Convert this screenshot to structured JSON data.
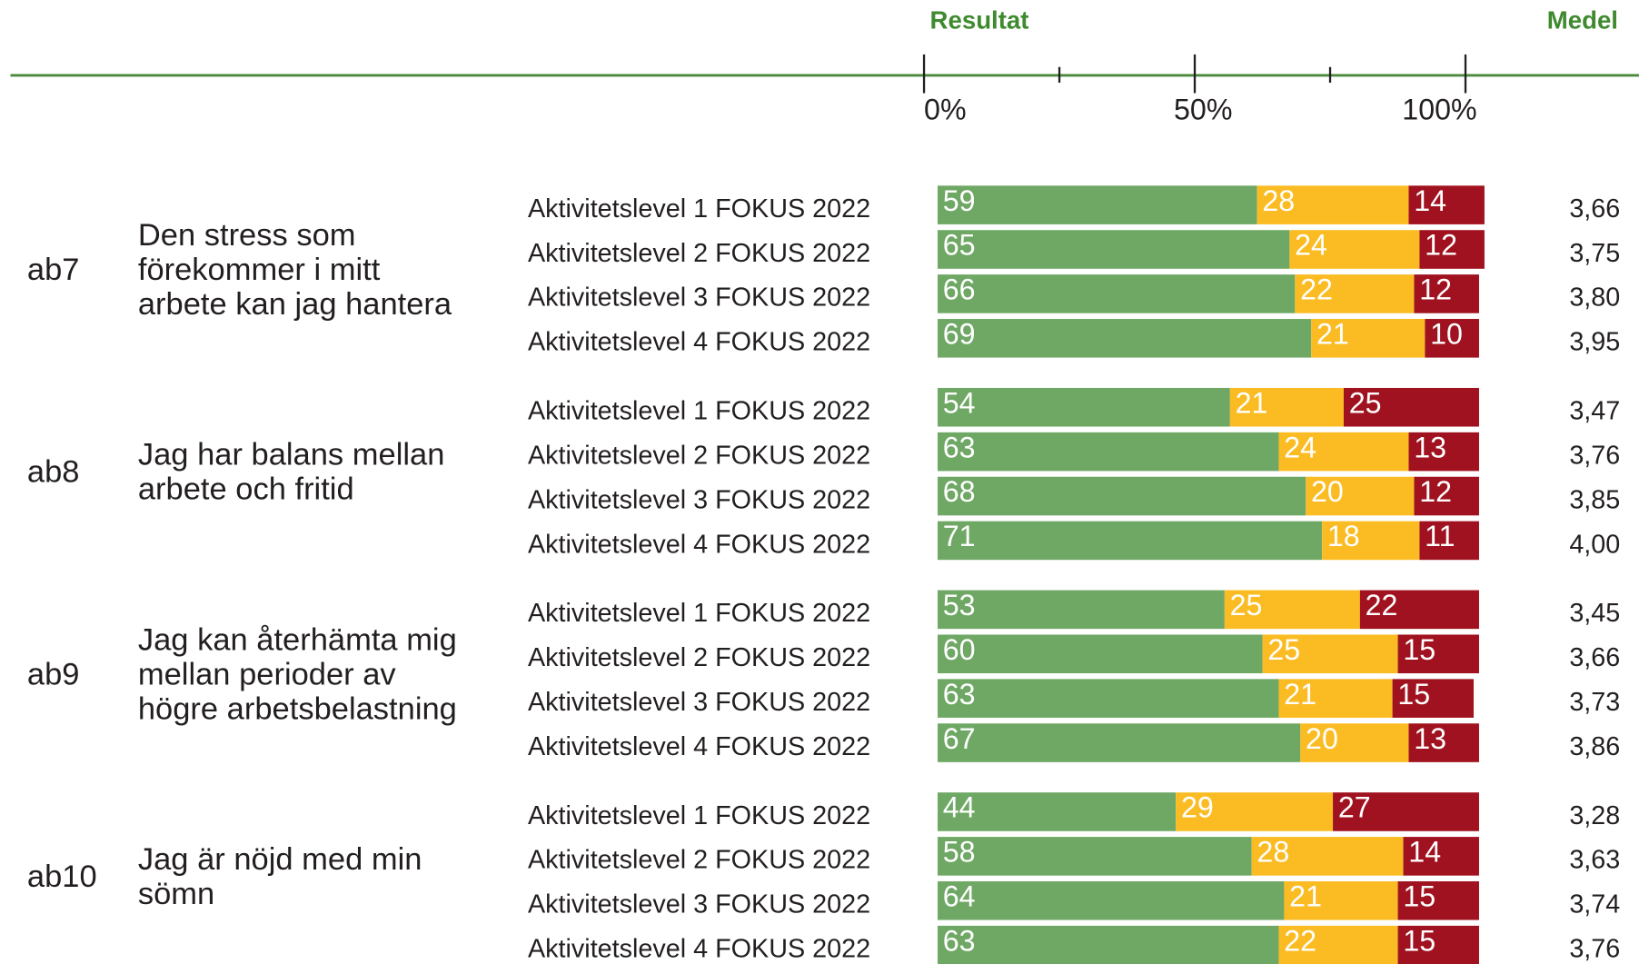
{
  "chart_data": {
    "type": "bar",
    "orientation": "horizontal",
    "stacked": true,
    "headers": [
      "Resultat",
      "Medel"
    ],
    "xlim": [
      0,
      100
    ],
    "xticks": [
      {
        "value": 0,
        "label": "0%"
      },
      {
        "value": 50,
        "label": "50%"
      },
      {
        "value": 100,
        "label": "100%"
      }
    ],
    "xminorticks": [
      25,
      75
    ],
    "colors": [
      "#6fa865",
      "#fbbc23",
      "#a0121f"
    ],
    "groups": [
      {
        "code": "ab7",
        "question": [
          "Den stress som",
          "förekommer i mitt",
          "arbete kan jag hantera"
        ],
        "rows": [
          {
            "label": "Aktivitetslevel 1 FOKUS 2022",
            "values": [
              59,
              28,
              14
            ],
            "medel": 3.66,
            "medel_label": "3,66"
          },
          {
            "label": "Aktivitetslevel 2 FOKUS 2022",
            "values": [
              65,
              24,
              12
            ],
            "medel": 3.75,
            "medel_label": "3,75"
          },
          {
            "label": "Aktivitetslevel 3 FOKUS 2022",
            "values": [
              66,
              22,
              12
            ],
            "medel": 3.8,
            "medel_label": "3,80"
          },
          {
            "label": "Aktivitetslevel 4 FOKUS 2022",
            "values": [
              69,
              21,
              10
            ],
            "medel": 3.95,
            "medel_label": "3,95"
          }
        ]
      },
      {
        "code": "ab8",
        "question": [
          "Jag har balans mellan",
          "arbete och fritid"
        ],
        "rows": [
          {
            "label": "Aktivitetslevel 1 FOKUS 2022",
            "values": [
              54,
              21,
              25
            ],
            "medel": 3.47,
            "medel_label": "3,47"
          },
          {
            "label": "Aktivitetslevel 2 FOKUS 2022",
            "values": [
              63,
              24,
              13
            ],
            "medel": 3.76,
            "medel_label": "3,76"
          },
          {
            "label": "Aktivitetslevel 3 FOKUS 2022",
            "values": [
              68,
              20,
              12
            ],
            "medel": 3.85,
            "medel_label": "3,85"
          },
          {
            "label": "Aktivitetslevel 4 FOKUS 2022",
            "values": [
              71,
              18,
              11
            ],
            "medel": 4.0,
            "medel_label": "4,00"
          }
        ]
      },
      {
        "code": "ab9",
        "question": [
          "Jag kan återhämta mig",
          "mellan perioder av",
          "högre arbetsbelastning"
        ],
        "rows": [
          {
            "label": "Aktivitetslevel 1 FOKUS 2022",
            "values": [
              53,
              25,
              22
            ],
            "medel": 3.45,
            "medel_label": "3,45"
          },
          {
            "label": "Aktivitetslevel 2 FOKUS 2022",
            "values": [
              60,
              25,
              15
            ],
            "medel": 3.66,
            "medel_label": "3,66"
          },
          {
            "label": "Aktivitetslevel 3 FOKUS 2022",
            "values": [
              63,
              21,
              15
            ],
            "medel": 3.73,
            "medel_label": "3,73"
          },
          {
            "label": "Aktivitetslevel 4 FOKUS 2022",
            "values": [
              67,
              20,
              13
            ],
            "medel": 3.86,
            "medel_label": "3,86"
          }
        ]
      },
      {
        "code": "ab10",
        "question": [
          "Jag är nöjd med min",
          "sömn"
        ],
        "rows": [
          {
            "label": "Aktivitetslevel 1 FOKUS 2022",
            "values": [
              44,
              29,
              27
            ],
            "medel": 3.28,
            "medel_label": "3,28"
          },
          {
            "label": "Aktivitetslevel 2 FOKUS 2022",
            "values": [
              58,
              28,
              14
            ],
            "medel": 3.63,
            "medel_label": "3,63"
          },
          {
            "label": "Aktivitetslevel 3 FOKUS 2022",
            "values": [
              64,
              21,
              15
            ],
            "medel": 3.74,
            "medel_label": "3,74"
          },
          {
            "label": "Aktivitetslevel 4 FOKUS 2022",
            "values": [
              63,
              22,
              15
            ],
            "medel": 3.76,
            "medel_label": "3,76"
          }
        ]
      }
    ]
  }
}
